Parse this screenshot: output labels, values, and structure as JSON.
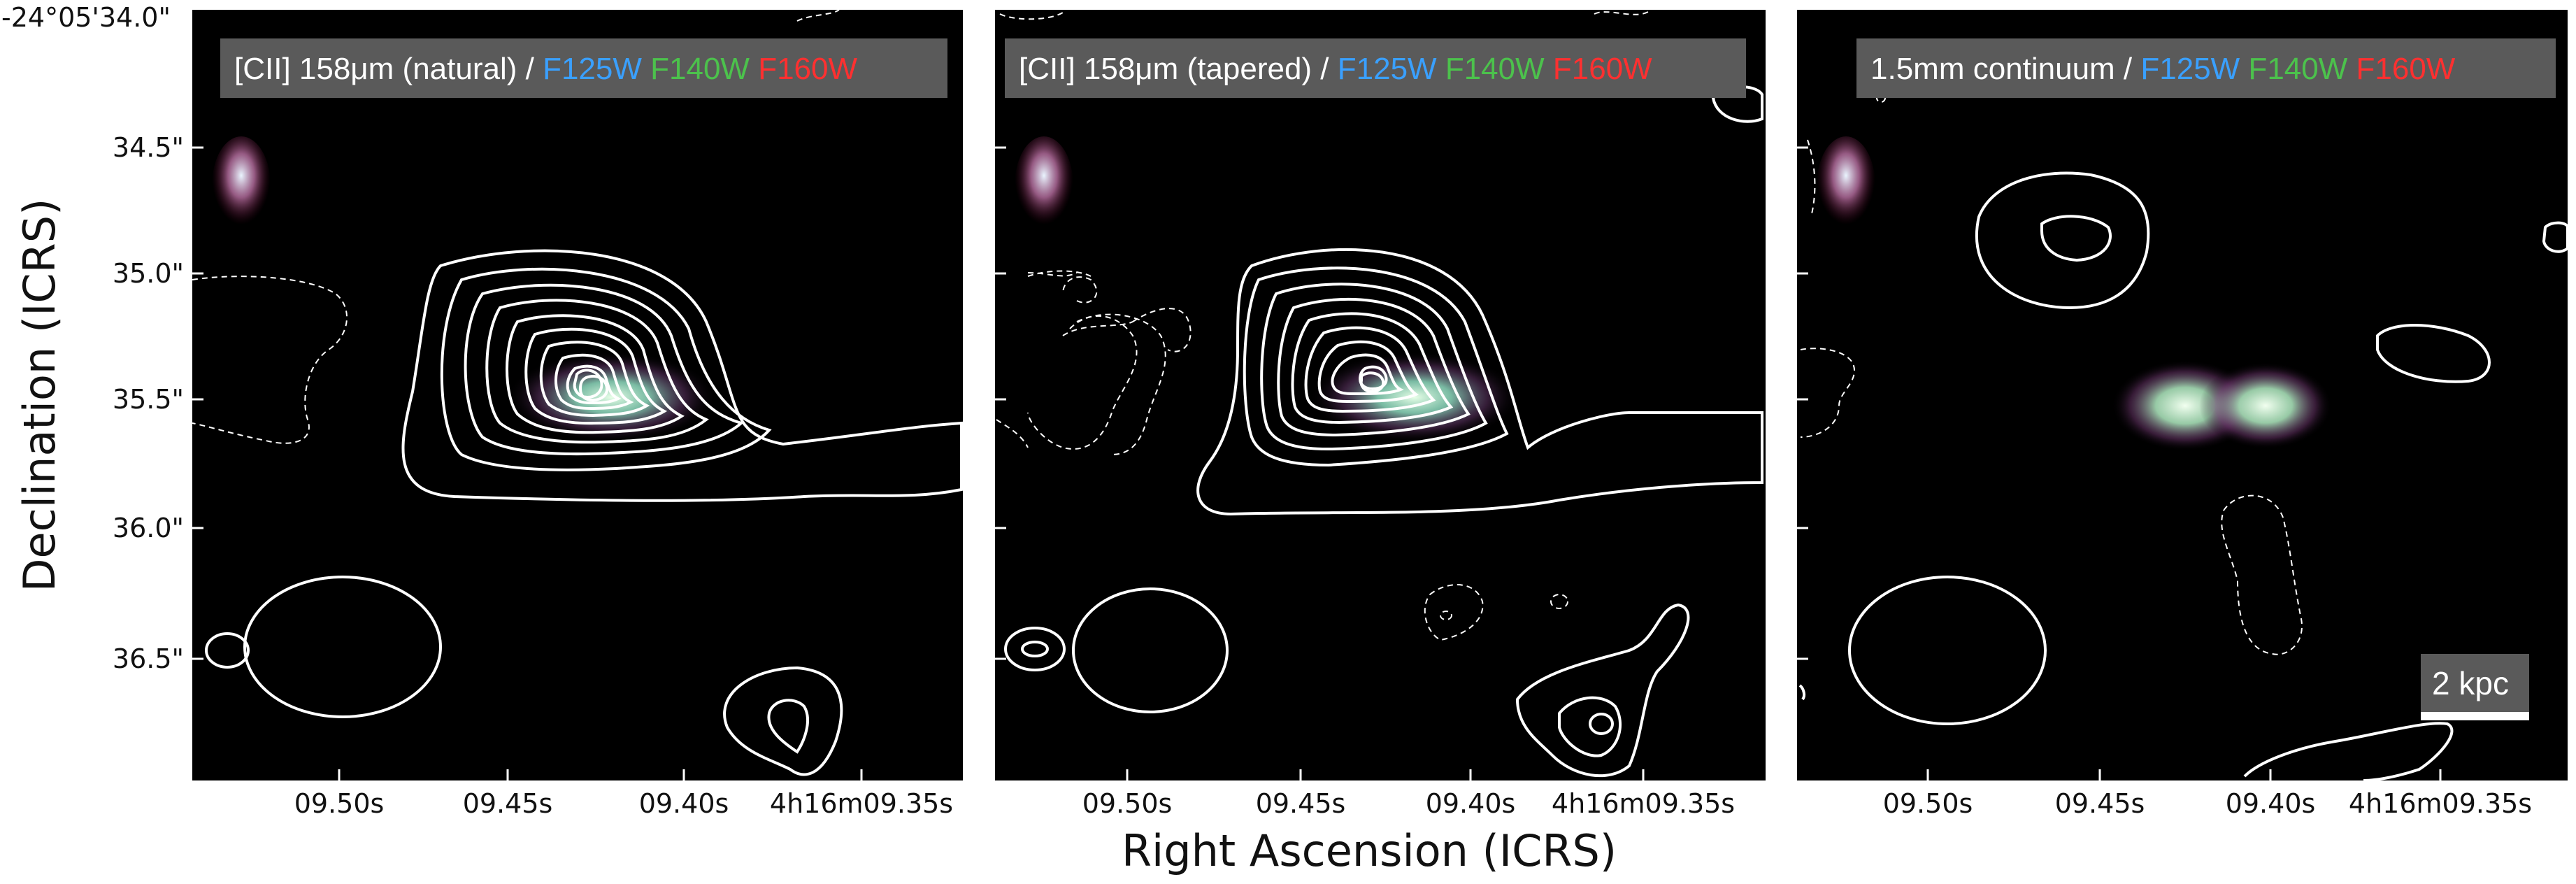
{
  "figure": {
    "y_axis_title": "Declination (ICRS)",
    "x_axis_title": "Right Ascension (ICRS)",
    "dec_ticks": [
      "-24°05'34.0\"",
      "34.5\"",
      "35.0\"",
      "35.5\"",
      "36.0\"",
      "36.5\""
    ],
    "ra_ticks": [
      "09.50s",
      "09.45s",
      "09.40s",
      "4h16m09.35s"
    ],
    "colors": {
      "background": "#000000",
      "f125w": "#3aa0ff",
      "f140w": "#4cc24c",
      "f160w": "#ff3030",
      "label_box": "#5a5a5a",
      "contours": "#ffffff"
    }
  },
  "panels": [
    {
      "label_prefix": "[CII] 158μm (natural) / ",
      "filters": [
        "F125W",
        "F140W",
        "F160W"
      ],
      "scale_bar": ""
    },
    {
      "label_prefix": "[CII] 158μm (tapered) / ",
      "filters": [
        "F125W",
        "F140W",
        "F160W"
      ],
      "scale_bar": ""
    },
    {
      "label_prefix": "1.5mm continuum / ",
      "filters": [
        "F125W",
        "F140W",
        "F160W"
      ],
      "scale_bar": "2 kpc"
    }
  ]
}
